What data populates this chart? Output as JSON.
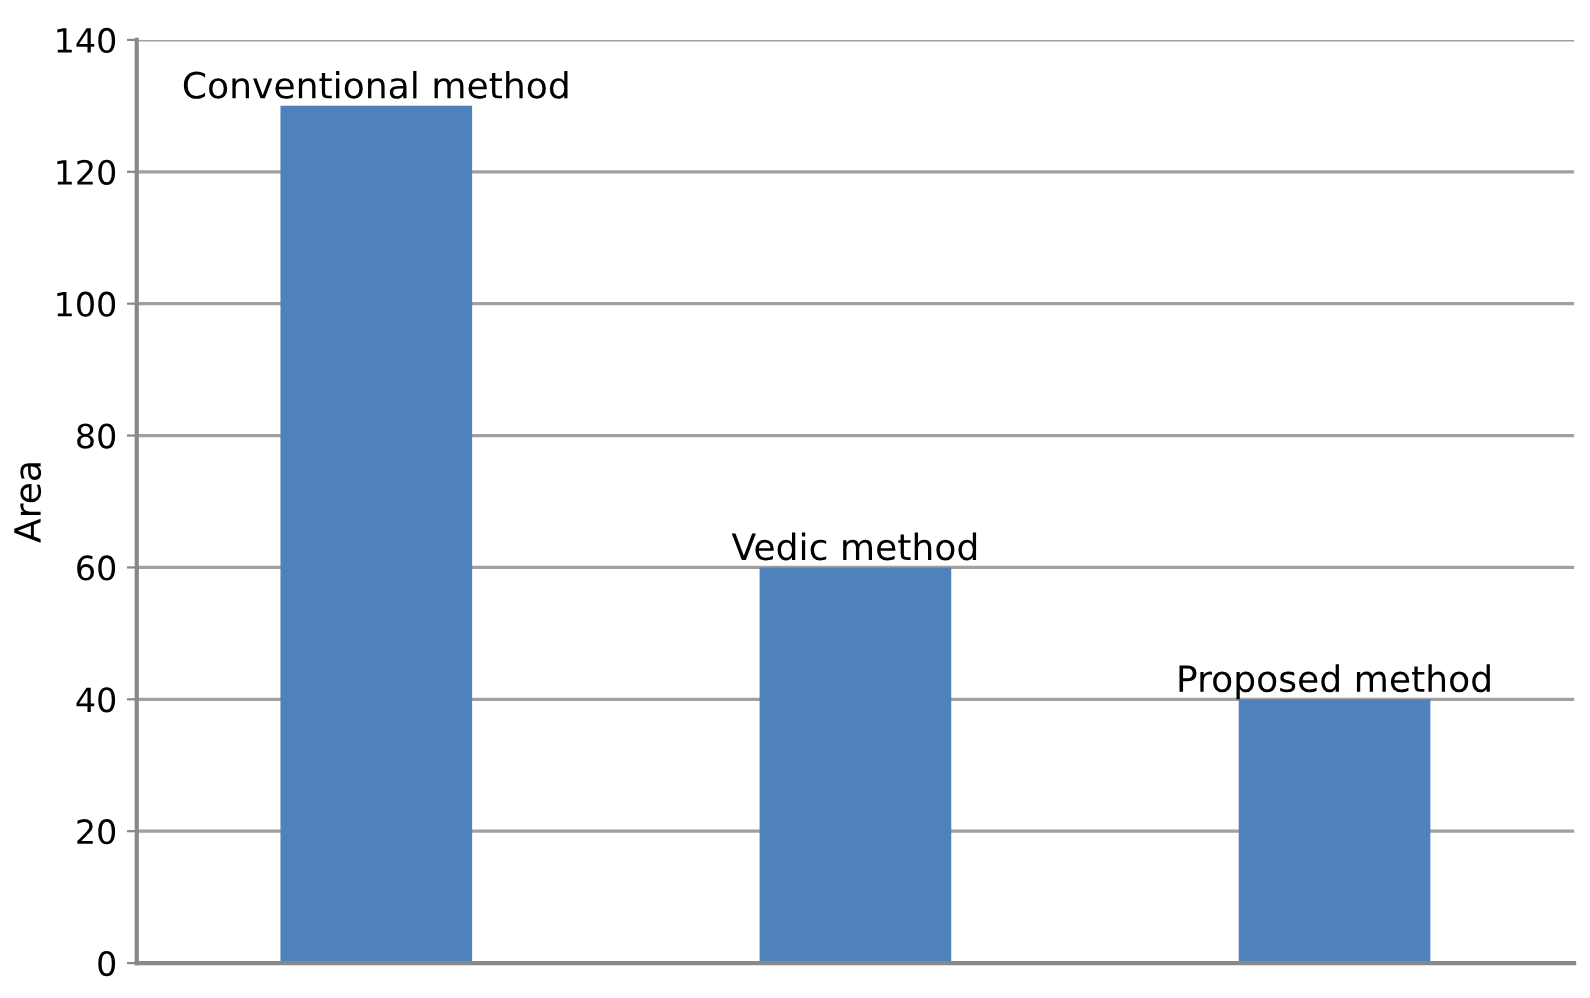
{
  "chart_data": {
    "type": "bar",
    "ylabel": "Area",
    "categories": [
      "Conventional method",
      "Vedic method",
      "Proposed method"
    ],
    "values": [
      130,
      60,
      40
    ],
    "color": "#4f81bd",
    "ylim": [
      0,
      140
    ],
    "yticks": [
      0,
      20,
      40,
      60,
      80,
      100,
      120,
      140
    ],
    "grid": "y",
    "tick_labels": "y"
  }
}
